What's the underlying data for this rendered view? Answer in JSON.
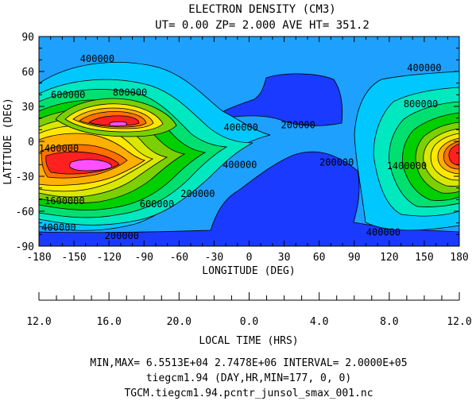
{
  "chart_data": {
    "type": "contour",
    "title": "ELECTRON DENSITY (CM3)",
    "subtitle": "UT= 0.00 ZP=  2.000 AVE HT= 351.2",
    "xlabel": "LONGITUDE (DEG)",
    "ylabel": "LATITUDE (DEG)",
    "x_ticks": [
      "-180",
      "-150",
      "-120",
      "-90",
      "-60",
      "-30",
      "0",
      "30",
      "60",
      "90",
      "120",
      "150",
      "180"
    ],
    "y_ticks": [
      "90",
      "60",
      "30",
      "0",
      "-30",
      "-60",
      "-90"
    ],
    "xlim": [
      -180,
      180
    ],
    "ylim": [
      -90,
      90
    ],
    "localtime_label": "LOCAL TIME (HRS)",
    "localtime_ticks": [
      "12.0",
      "16.0",
      "20.0",
      "0.0",
      "4.0",
      "8.0",
      "12.0"
    ],
    "contour_labels": [
      {
        "text": "400000",
        "lon": -130,
        "lat": 71
      },
      {
        "text": "600000",
        "lon": -155,
        "lat": 40
      },
      {
        "text": "800000",
        "lon": -102,
        "lat": 42
      },
      {
        "text": "400000",
        "lon": -7,
        "lat": 12
      },
      {
        "text": "200000",
        "lon": 42,
        "lat": 14
      },
      {
        "text": "400000",
        "lon": 150,
        "lat": 63
      },
      {
        "text": "800000",
        "lon": 147,
        "lat": 32
      },
      {
        "text": "1400000",
        "lon": -163,
        "lat": -6
      },
      {
        "text": "1400000",
        "lon": 135,
        "lat": -21
      },
      {
        "text": "400000",
        "lon": -8,
        "lat": -20
      },
      {
        "text": "200000",
        "lon": 75,
        "lat": -18
      },
      {
        "text": "200000",
        "lon": -44,
        "lat": -45
      },
      {
        "text": "1600000",
        "lon": -158,
        "lat": -51
      },
      {
        "text": "600000",
        "lon": -79,
        "lat": -54
      },
      {
        "text": "400000",
        "lon": -163,
        "lat": -74
      },
      {
        "text": "200000",
        "lon": -109,
        "lat": -81
      },
      {
        "text": "400000",
        "lon": 115,
        "lat": -78
      }
    ],
    "grid": false,
    "legend": "none"
  },
  "footer": {
    "minmax": "MIN,MAX=  6.5513E+04  2.7478E+06 INTERVAL=  2.0000E+05",
    "model": "tiegcm1.94 (DAY,HR,MIN=177, 0, 0)",
    "file": "TGCM.tiegcm1.94.pcntr_junsol_smax_001.nc"
  },
  "colors": {
    "background_level": "#1ea0ff",
    "low_level": "#1a3aff",
    "levels": [
      "#1a3aff",
      "#1ea0ff",
      "#00c8ff",
      "#00e8c0",
      "#00e070",
      "#00d000",
      "#7ad000",
      "#d8e800",
      "#ffe800",
      "#ffb000",
      "#ff7000",
      "#ff2020",
      "#ff50ff"
    ]
  }
}
